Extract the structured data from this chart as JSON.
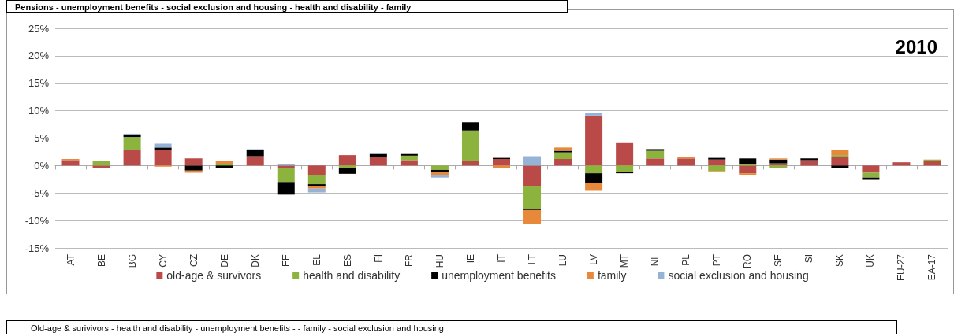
{
  "chart_data": {
    "type": "bar",
    "title": "Pensions - unemployment benefits - social exclusion and housing - health and disability - family",
    "subtitle": "2010",
    "annotations": [
      "Old-age & surivivors - health and disability - unemployment benefits - - family - social exclusion and housing"
    ],
    "categories": [
      "AT",
      "BE",
      "BG",
      "CY",
      "CZ",
      "DE",
      "DK",
      "EE",
      "EL",
      "ES",
      "FI",
      "FR",
      "HU",
      "IE",
      "IT",
      "LT",
      "LU",
      "LV",
      "MT",
      "NL",
      "PL",
      "PT",
      "RO",
      "SE",
      "SI",
      "SK",
      "UK",
      "EU-27",
      "EA-17"
    ],
    "stacked": true,
    "series": [
      {
        "name": "old-age & survivors",
        "color": "#b94a48",
        "values": [
          1.0,
          -0.4,
          2.8,
          2.9,
          1.3,
          null,
          1.7,
          -0.4,
          -1.8,
          1.9,
          1.6,
          1.0,
          0,
          0.8,
          1.2,
          -3.7,
          1.2,
          9.1,
          4.1,
          1.3,
          1.3,
          1.1,
          -1.4,
          0.4,
          1.0,
          1.5,
          -1.3,
          0.6,
          0.8
        ]
      },
      {
        "name": "health and disability",
        "color": "#8db33f",
        "values": [
          0,
          0.8,
          2.4,
          0,
          0,
          0.3,
          0,
          -2.6,
          -1.6,
          -0.5,
          0,
          0.8,
          -0.8,
          5.6,
          0,
          -4.2,
          1.2,
          -1.4,
          -1.2,
          1.4,
          0,
          -1.0,
          0.3,
          -0.5,
          0,
          0.4,
          -0.9,
          0,
          0.3
        ]
      },
      {
        "name": "unemployment benefits",
        "color": "#000000",
        "values": [
          0,
          0.1,
          0.4,
          0.4,
          -0.9,
          -0.4,
          1.2,
          -2.3,
          -0.3,
          -1.0,
          0.5,
          0.3,
          -0.3,
          1.5,
          0.2,
          -0.2,
          0.3,
          -1.8,
          -0.2,
          0.3,
          0,
          0.3,
          1.0,
          0.7,
          0.3,
          -0.4,
          -0.4,
          0,
          0
        ]
      },
      {
        "name": "family",
        "color": "#e8883a",
        "values": [
          0.2,
          0,
          0,
          -0.2,
          -0.4,
          0.5,
          0,
          0,
          -0.5,
          0,
          0,
          0,
          -0.6,
          0,
          -0.4,
          -2.6,
          0.6,
          -1.4,
          0,
          0,
          0.2,
          -0.1,
          -0.4,
          0.2,
          0,
          0.9,
          0,
          0,
          0
        ]
      },
      {
        "name": "social exclusion and housing",
        "color": "#95b3d7",
        "values": [
          0,
          0,
          0.2,
          0.7,
          0,
          0,
          0.1,
          0.3,
          -0.7,
          0,
          0.1,
          0,
          -0.5,
          0,
          0,
          1.7,
          0,
          0.5,
          0,
          0,
          0,
          0,
          0,
          0,
          0,
          0.1,
          0,
          0,
          0
        ]
      }
    ],
    "ylim": [
      -15,
      25
    ],
    "yticks": [
      {
        "value": -15,
        "label": "-15%"
      },
      {
        "value": -10,
        "label": "-10%"
      },
      {
        "value": -5,
        "label": "-5%"
      },
      {
        "value": 0,
        "label": "0%"
      },
      {
        "value": 5,
        "label": "5%"
      },
      {
        "value": 10,
        "label": "10%"
      },
      {
        "value": 15,
        "label": "15%"
      },
      {
        "value": 20,
        "label": "20%"
      },
      {
        "value": 25,
        "label": "25%"
      }
    ],
    "grid": "y",
    "legend": "bottom"
  }
}
